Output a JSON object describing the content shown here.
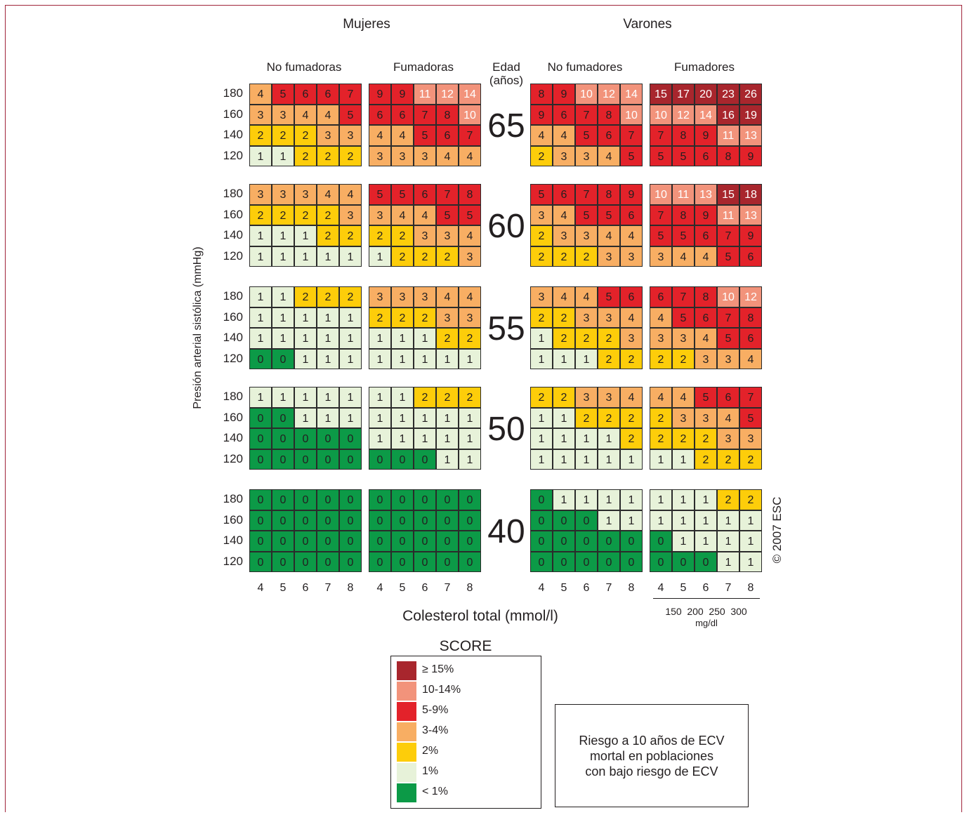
{
  "chart_data": {
    "type": "heatmap",
    "title": "SCORE",
    "ylabel": "Presión arterial sistólica (mmHg)",
    "xlabel": "Colesterol total (mmol/l)",
    "x_mmol": [
      "4",
      "5",
      "6",
      "7",
      "8"
    ],
    "x_mgdl": [
      "150",
      "200",
      "250",
      "300"
    ],
    "x_mgdl_unit": "mg/dl",
    "bp_levels": [
      "180",
      "160",
      "140",
      "120"
    ],
    "ages": [
      "65",
      "60",
      "55",
      "50",
      "40"
    ],
    "age_header": [
      "Edad",
      "(años)"
    ],
    "sexes": [
      "Mujeres",
      "Varones"
    ],
    "columns": [
      "No fumadoras",
      "Fumadoras",
      "No fumadores",
      "Fumadores"
    ],
    "grids": [
      [
        [
          [
            4,
            5,
            6,
            6,
            7
          ],
          [
            3,
            3,
            4,
            4,
            5
          ],
          [
            2,
            2,
            2,
            3,
            3
          ],
          [
            1,
            1,
            2,
            2,
            2
          ]
        ],
        [
          [
            9,
            9,
            11,
            12,
            14
          ],
          [
            6,
            6,
            7,
            8,
            10
          ],
          [
            4,
            4,
            5,
            6,
            7
          ],
          [
            3,
            3,
            3,
            4,
            4
          ]
        ],
        [
          [
            8,
            9,
            10,
            12,
            14
          ],
          [
            9,
            6,
            7,
            8,
            10
          ],
          [
            4,
            4,
            5,
            6,
            7
          ],
          [
            2,
            3,
            3,
            4,
            5
          ]
        ],
        [
          [
            15,
            17,
            20,
            23,
            26
          ],
          [
            10,
            12,
            14,
            16,
            19
          ],
          [
            7,
            8,
            9,
            11,
            13
          ],
          [
            5,
            5,
            6,
            8,
            9
          ]
        ]
      ],
      [
        [
          [
            3,
            3,
            3,
            4,
            4
          ],
          [
            2,
            2,
            2,
            2,
            3
          ],
          [
            1,
            1,
            1,
            2,
            2
          ],
          [
            1,
            1,
            1,
            1,
            1
          ]
        ],
        [
          [
            5,
            5,
            6,
            7,
            8
          ],
          [
            3,
            4,
            4,
            5,
            5
          ],
          [
            2,
            2,
            3,
            3,
            4
          ],
          [
            1,
            2,
            2,
            2,
            3
          ]
        ],
        [
          [
            5,
            6,
            7,
            8,
            9
          ],
          [
            3,
            4,
            5,
            5,
            6
          ],
          [
            2,
            3,
            3,
            4,
            4
          ],
          [
            2,
            2,
            2,
            3,
            3
          ]
        ],
        [
          [
            10,
            11,
            13,
            15,
            18
          ],
          [
            7,
            8,
            9,
            11,
            13
          ],
          [
            5,
            5,
            6,
            7,
            9
          ],
          [
            3,
            4,
            4,
            5,
            6
          ]
        ]
      ],
      [
        [
          [
            1,
            1,
            2,
            2,
            2
          ],
          [
            1,
            1,
            1,
            1,
            1
          ],
          [
            1,
            1,
            1,
            1,
            1
          ],
          [
            0,
            0,
            1,
            1,
            1
          ]
        ],
        [
          [
            3,
            3,
            3,
            4,
            4
          ],
          [
            2,
            2,
            2,
            3,
            3
          ],
          [
            1,
            1,
            1,
            2,
            2
          ],
          [
            1,
            1,
            1,
            1,
            1
          ]
        ],
        [
          [
            3,
            4,
            4,
            5,
            6
          ],
          [
            2,
            2,
            3,
            3,
            4
          ],
          [
            1,
            2,
            2,
            2,
            3
          ],
          [
            1,
            1,
            1,
            2,
            2
          ]
        ],
        [
          [
            6,
            7,
            8,
            10,
            12
          ],
          [
            4,
            5,
            6,
            7,
            8
          ],
          [
            3,
            3,
            4,
            5,
            6
          ],
          [
            2,
            2,
            3,
            3,
            4
          ]
        ]
      ],
      [
        [
          [
            1,
            1,
            1,
            1,
            1
          ],
          [
            0,
            0,
            1,
            1,
            1
          ],
          [
            0,
            0,
            0,
            0,
            0
          ],
          [
            0,
            0,
            0,
            0,
            0
          ]
        ],
        [
          [
            1,
            1,
            2,
            2,
            2
          ],
          [
            1,
            1,
            1,
            1,
            1
          ],
          [
            1,
            1,
            1,
            1,
            1
          ],
          [
            0,
            0,
            0,
            1,
            1
          ]
        ],
        [
          [
            2,
            2,
            3,
            3,
            4
          ],
          [
            1,
            1,
            2,
            2,
            2
          ],
          [
            1,
            1,
            1,
            1,
            2
          ],
          [
            1,
            1,
            1,
            1,
            1
          ]
        ],
        [
          [
            4,
            4,
            5,
            6,
            7
          ],
          [
            2,
            3,
            3,
            4,
            5
          ],
          [
            2,
            2,
            2,
            3,
            3
          ],
          [
            1,
            1,
            2,
            2,
            2
          ]
        ]
      ],
      [
        [
          [
            0,
            0,
            0,
            0,
            0
          ],
          [
            0,
            0,
            0,
            0,
            0
          ],
          [
            0,
            0,
            0,
            0,
            0
          ],
          [
            0,
            0,
            0,
            0,
            0
          ]
        ],
        [
          [
            0,
            0,
            0,
            0,
            0
          ],
          [
            0,
            0,
            0,
            0,
            0
          ],
          [
            0,
            0,
            0,
            0,
            0
          ],
          [
            0,
            0,
            0,
            0,
            0
          ]
        ],
        [
          [
            0,
            1,
            1,
            1,
            1
          ],
          [
            0,
            0,
            0,
            1,
            1
          ],
          [
            0,
            0,
            0,
            0,
            0
          ],
          [
            0,
            0,
            0,
            0,
            0
          ]
        ],
        [
          [
            1,
            1,
            1,
            2,
            2
          ],
          [
            1,
            1,
            1,
            1,
            1
          ],
          [
            0,
            1,
            1,
            1,
            1
          ],
          [
            0,
            0,
            0,
            1,
            1
          ]
        ]
      ]
    ],
    "legend": [
      {
        "label": "≥ 15%",
        "color": "#a8262d",
        "min": 15,
        "max": 99,
        "text": "#ffffff"
      },
      {
        "label": "10-14%",
        "color": "#f2937b",
        "min": 10,
        "max": 14,
        "text": "#ffffff"
      },
      {
        "label": "5-9%",
        "color": "#e3222a",
        "min": 5,
        "max": 9,
        "text": "#231f20"
      },
      {
        "label": "3-4%",
        "color": "#f8ae63",
        "min": 3,
        "max": 4,
        "text": "#231f20"
      },
      {
        "label": "2%",
        "color": "#fdcd0a",
        "min": 2,
        "max": 2,
        "text": "#231f20"
      },
      {
        "label": "1%",
        "color": "#e7f2d9",
        "min": 1,
        "max": 1,
        "text": "#231f20"
      },
      {
        "label": "< 1%",
        "color": "#0c9a47",
        "min": 0,
        "max": 0,
        "text": "#231f20"
      }
    ]
  },
  "note": [
    "Riesgo a 10 años de ECV",
    "mortal en poblaciones",
    "con bajo riesgo de ECV"
  ],
  "copyright": "© 2007 ESC"
}
